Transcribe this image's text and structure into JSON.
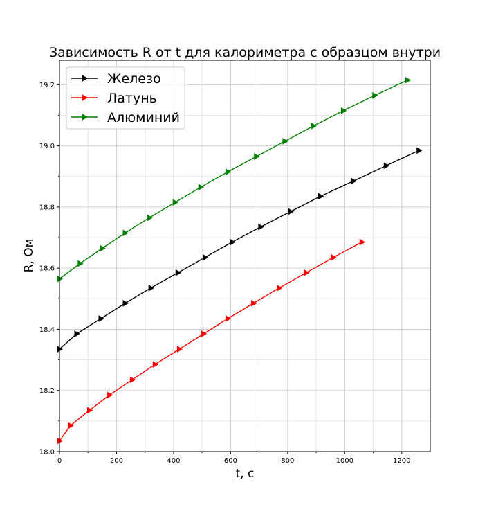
{
  "chart_data": {
    "type": "line",
    "title": "Зависимость R от t для калориметра с образцом внутри",
    "xlabel": "t, с",
    "ylabel": "R, Ом",
    "xlim": [
      0,
      1300
    ],
    "ylim": [
      18.0,
      19.28
    ],
    "xticks": [
      0,
      200,
      400,
      600,
      800,
      1000,
      1200
    ],
    "yticks": [
      18.0,
      18.2,
      18.4,
      18.6,
      18.8,
      19.0,
      19.2
    ],
    "xtick_labels": [
      "0",
      "200",
      "400",
      "600",
      "800",
      "1000",
      "1200"
    ],
    "ytick_labels": [
      "18.0",
      "18.2",
      "18.4",
      "18.6",
      "18.8",
      "19.0",
      "19.2"
    ],
    "grid": true,
    "legend_position": "top-left",
    "marker": "triangle-right",
    "series": [
      {
        "name": "Железо",
        "color": "#000000",
        "x": [
          0,
          60,
          145,
          230,
          320,
          415,
          510,
          605,
          705,
          810,
          915,
          1030,
          1145,
          1260
        ],
        "y": [
          18.335,
          18.385,
          18.435,
          18.485,
          18.535,
          18.585,
          18.635,
          18.685,
          18.735,
          18.785,
          18.835,
          18.885,
          18.935,
          18.985
        ]
      },
      {
        "name": "Латунь",
        "color": "#ff0000",
        "x": [
          0,
          38,
          105,
          175,
          255,
          335,
          420,
          505,
          590,
          680,
          770,
          865,
          960,
          1060
        ],
        "y": [
          18.035,
          18.085,
          18.135,
          18.185,
          18.235,
          18.285,
          18.335,
          18.385,
          18.435,
          18.485,
          18.535,
          18.585,
          18.635,
          18.685
        ]
      },
      {
        "name": "Алюминий",
        "color": "#008000",
        "x": [
          0,
          72,
          150,
          230,
          315,
          405,
          495,
          590,
          690,
          790,
          890,
          995,
          1105,
          1220
        ],
        "y": [
          18.565,
          18.615,
          18.665,
          18.715,
          18.765,
          18.815,
          18.865,
          18.915,
          18.965,
          19.015,
          19.065,
          19.115,
          19.165,
          19.215
        ]
      }
    ]
  }
}
